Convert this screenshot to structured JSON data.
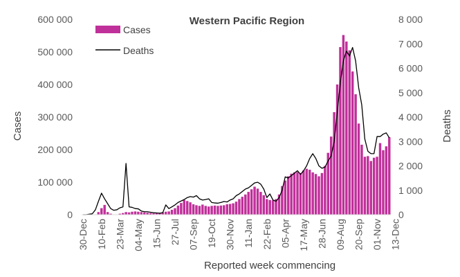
{
  "chart_data": {
    "type": "bar",
    "title": "Western Pacific Region",
    "xlabel": "Reported week commencing",
    "ylabel": "Cases",
    "y2label": "Deaths",
    "ylim": [
      0,
      600000
    ],
    "y2lim": [
      0,
      8000
    ],
    "yticks": [
      "0",
      "100 000",
      "200 000",
      "300 000",
      "400 000",
      "500 000",
      "600 000"
    ],
    "y2ticks": [
      "0",
      "1 000",
      "2 000",
      "3 000",
      "4 000",
      "5 000",
      "6 000",
      "7 000",
      "8 000"
    ],
    "xtick_labels": [
      "30-Dec",
      "10-Feb",
      "23-Mar",
      "04-May",
      "15-Jun",
      "27-Jul",
      "07-Sep",
      "19-Oct",
      "30-Nov",
      "11-Jan",
      "22-Feb",
      "05-Apr",
      "17-May",
      "28-Jun",
      "09-Aug",
      "20-Sep",
      "01-Nov",
      "13-Dec"
    ],
    "legend": {
      "placement": "top-left"
    },
    "colors": {
      "cases": "#c0309a",
      "deaths": "#000000"
    },
    "series": [
      {
        "name": "Cases",
        "kind": "bar",
        "axis": "left",
        "values": [
          0,
          0,
          0,
          0,
          0,
          8000,
          20000,
          30000,
          8000,
          3000,
          1000,
          1000,
          3000,
          5000,
          8000,
          7000,
          9000,
          10000,
          9000,
          8000,
          7000,
          6000,
          5000,
          4000,
          5000,
          6000,
          7000,
          9000,
          10000,
          15000,
          20000,
          28000,
          36000,
          45000,
          42000,
          38000,
          32000,
          29000,
          27000,
          31000,
          27000,
          25000,
          27000,
          28000,
          27000,
          28000,
          29000,
          32000,
          33000,
          35000,
          40000,
          48000,
          55000,
          62000,
          70000,
          78000,
          86000,
          80000,
          70000,
          60000,
          48000,
          45000,
          44000,
          48000,
          62000,
          88000,
          105000,
          118000,
          126000,
          130000,
          131000,
          128000,
          136000,
          141000,
          138000,
          130000,
          125000,
          118000,
          128000,
          150000,
          190000,
          240000,
          315000,
          400000,
          515000,
          552000,
          532000,
          505000,
          440000,
          370000,
          280000,
          215000,
          178000,
          180000,
          165000,
          175000,
          178000,
          220000,
          198000,
          210000,
          238000
        ]
      },
      {
        "name": "Deaths",
        "kind": "line",
        "axis": "right",
        "values": [
          0,
          0,
          20,
          40,
          200,
          550,
          880,
          650,
          450,
          250,
          180,
          200,
          280,
          320,
          2100,
          320,
          300,
          250,
          240,
          150,
          120,
          120,
          100,
          80,
          70,
          60,
          80,
          400,
          250,
          320,
          400,
          500,
          560,
          620,
          700,
          740,
          720,
          780,
          650,
          600,
          620,
          650,
          500,
          480,
          470,
          500,
          540,
          520,
          600,
          650,
          780,
          850,
          950,
          1050,
          1100,
          1200,
          1300,
          1330,
          1250,
          1050,
          700,
          850,
          600,
          550,
          700,
          1000,
          1550,
          1500,
          1600,
          1700,
          1800,
          1650,
          1800,
          2000,
          2300,
          2500,
          2300,
          2000,
          1900,
          1950,
          2200,
          2400,
          3000,
          4200,
          5400,
          6300,
          6700,
          6500,
          6850,
          6300,
          5200,
          4500,
          3100,
          2600,
          2500,
          2500,
          3200,
          3200,
          3300,
          3350,
          3150
        ]
      }
    ]
  }
}
